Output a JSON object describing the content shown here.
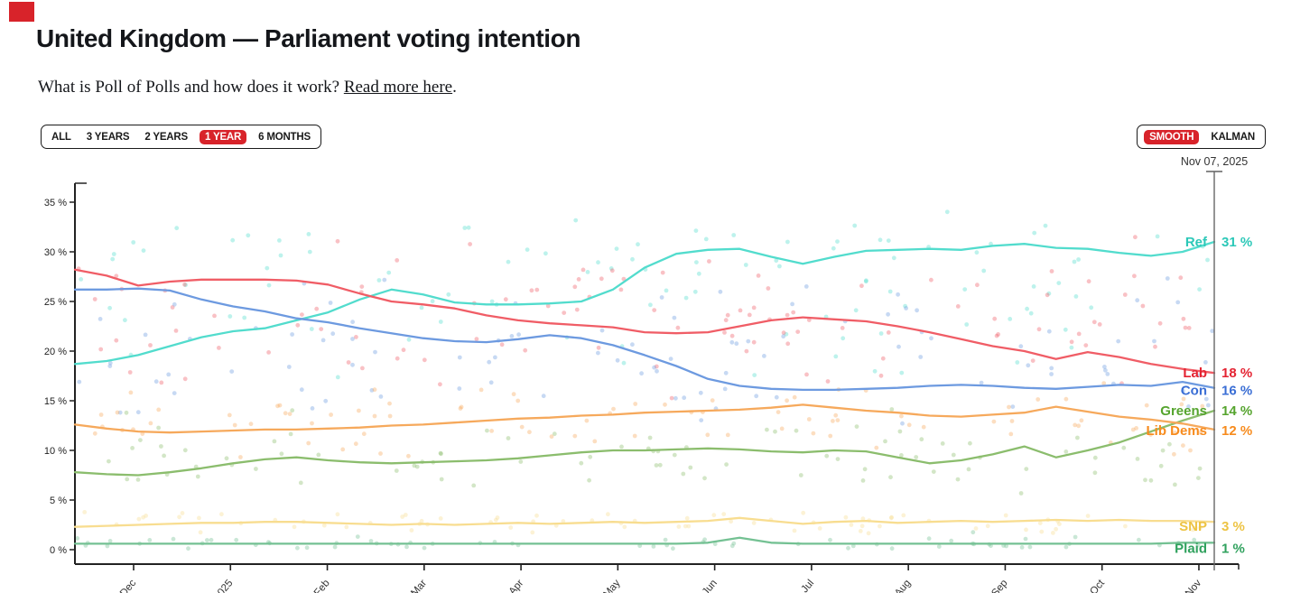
{
  "header": {
    "title": "United Kingdom — Parliament voting intention",
    "subtitle_prefix": "What is Poll of Polls and how does it work? ",
    "subtitle_link": "Read more here",
    "subtitle_suffix": "."
  },
  "controls": {
    "range_options": [
      "ALL",
      "3 YEARS",
      "2 YEARS",
      "1 YEAR",
      "6 MONTHS"
    ],
    "range_selected": "1 YEAR",
    "mode_options": [
      "SMOOTH",
      "KALMAN"
    ],
    "mode_selected": "SMOOTH",
    "selected_bg": "#d8232a"
  },
  "cursor": {
    "date_label": "Nov 07, 2025"
  },
  "chart_data": {
    "type": "line",
    "title": "United Kingdom — Parliament voting intention",
    "x_start": "Nov 2024",
    "x_end": "Nov 2025",
    "x_ticks": [
      "Dec",
      "2025",
      "Feb",
      "Mar",
      "Apr",
      "May",
      "Jun",
      "Jul",
      "Aug",
      "Sep",
      "Oct",
      "Nov"
    ],
    "y_ticks": [
      "0 %",
      "5 %",
      "10 %",
      "15 %",
      "20 %",
      "25 %",
      "30 %",
      "35 %"
    ],
    "ylim": [
      0,
      36
    ],
    "grid": false,
    "legend_position": "right-edge-labels",
    "series": [
      {
        "name": "Ref",
        "end_value": "31 %",
        "end_numeric": 31,
        "color": "#52dccd",
        "label_color": "#2cc8b8",
        "values": [
          18.7,
          19.0,
          19.6,
          20.5,
          21.4,
          22.0,
          22.3,
          23.1,
          23.9,
          25.2,
          26.2,
          25.7,
          24.9,
          24.7,
          24.7,
          24.8,
          25.0,
          26.2,
          28.4,
          29.8,
          30.2,
          30.3,
          29.5,
          28.8,
          29.5,
          30.1,
          30.2,
          30.3,
          30.2,
          30.6,
          30.8,
          30.4,
          30.3,
          29.9,
          29.6,
          30.0,
          31.0
        ]
      },
      {
        "name": "Lab",
        "end_value": "18 %",
        "end_numeric": 18,
        "color": "#f05d66",
        "label_color": "#e42332",
        "values": [
          28.2,
          27.6,
          26.6,
          27.0,
          27.2,
          27.2,
          27.2,
          27.1,
          26.7,
          25.8,
          25.0,
          24.7,
          24.3,
          23.6,
          23.1,
          22.8,
          22.6,
          22.4,
          21.9,
          21.8,
          21.9,
          22.5,
          23.1,
          23.4,
          23.2,
          23.0,
          22.5,
          21.9,
          21.2,
          20.5,
          20.0,
          19.2,
          19.9,
          19.4,
          18.7,
          18.2,
          17.8
        ]
      },
      {
        "name": "Con",
        "end_value": "16 %",
        "end_numeric": 16,
        "color": "#6d9ae0",
        "label_color": "#3a6ed5",
        "values": [
          26.2,
          26.2,
          26.3,
          26.1,
          25.2,
          24.5,
          24.0,
          23.3,
          22.9,
          22.3,
          21.8,
          21.3,
          21.0,
          20.9,
          21.2,
          21.6,
          21.3,
          20.6,
          19.6,
          18.5,
          17.2,
          16.5,
          16.2,
          16.1,
          16.1,
          16.2,
          16.3,
          16.5,
          16.6,
          16.5,
          16.3,
          16.2,
          16.4,
          16.6,
          16.5,
          16.9,
          16.3
        ]
      },
      {
        "name": "Greens",
        "end_value": "14 %",
        "end_numeric": 14,
        "color": "#8bbd6d",
        "label_color": "#55a42e",
        "values": [
          7.8,
          7.6,
          7.5,
          7.8,
          8.2,
          8.7,
          9.1,
          9.3,
          9.0,
          8.8,
          8.7,
          8.8,
          8.9,
          9.0,
          9.2,
          9.5,
          9.8,
          10.0,
          10.0,
          10.1,
          10.2,
          10.1,
          9.9,
          9.8,
          10.0,
          9.9,
          9.3,
          8.7,
          9.0,
          9.6,
          10.4,
          9.3,
          10.0,
          10.8,
          11.9,
          13.0,
          14.0
        ]
      },
      {
        "name": "Lib Dems",
        "end_value": "12 %",
        "end_numeric": 12,
        "color": "#f6a95c",
        "label_color": "#f78b1d",
        "values": [
          12.6,
          12.2,
          11.9,
          11.8,
          11.9,
          12.0,
          12.1,
          12.1,
          12.2,
          12.3,
          12.5,
          12.6,
          12.8,
          13.0,
          13.2,
          13.3,
          13.5,
          13.6,
          13.8,
          13.9,
          14.0,
          14.1,
          14.3,
          14.6,
          14.3,
          14.0,
          13.8,
          13.5,
          13.4,
          13.6,
          13.8,
          14.4,
          13.9,
          13.4,
          13.1,
          12.7,
          12.1
        ]
      },
      {
        "name": "SNP",
        "end_value": "3 %",
        "end_numeric": 3,
        "color": "#f8dd90",
        "label_color": "#edc343",
        "values": [
          2.3,
          2.4,
          2.5,
          2.6,
          2.7,
          2.7,
          2.8,
          2.8,
          2.7,
          2.6,
          2.5,
          2.6,
          2.5,
          2.6,
          2.7,
          2.6,
          2.7,
          2.8,
          2.7,
          2.8,
          2.9,
          3.2,
          2.9,
          2.6,
          2.8,
          2.9,
          2.7,
          2.8,
          2.9,
          2.8,
          2.9,
          3.0,
          2.9,
          3.0,
          2.9,
          2.9,
          2.8
        ]
      },
      {
        "name": "Plaid",
        "end_value": "1 %",
        "end_numeric": 1,
        "color": "#74c193",
        "label_color": "#2fa15d",
        "values": [
          0.6,
          0.6,
          0.6,
          0.6,
          0.6,
          0.6,
          0.6,
          0.6,
          0.6,
          0.6,
          0.6,
          0.6,
          0.6,
          0.6,
          0.6,
          0.6,
          0.6,
          0.6,
          0.6,
          0.6,
          0.7,
          1.2,
          0.7,
          0.6,
          0.6,
          0.6,
          0.6,
          0.6,
          0.6,
          0.6,
          0.6,
          0.6,
          0.6,
          0.6,
          0.6,
          0.7,
          0.7
        ]
      }
    ]
  }
}
